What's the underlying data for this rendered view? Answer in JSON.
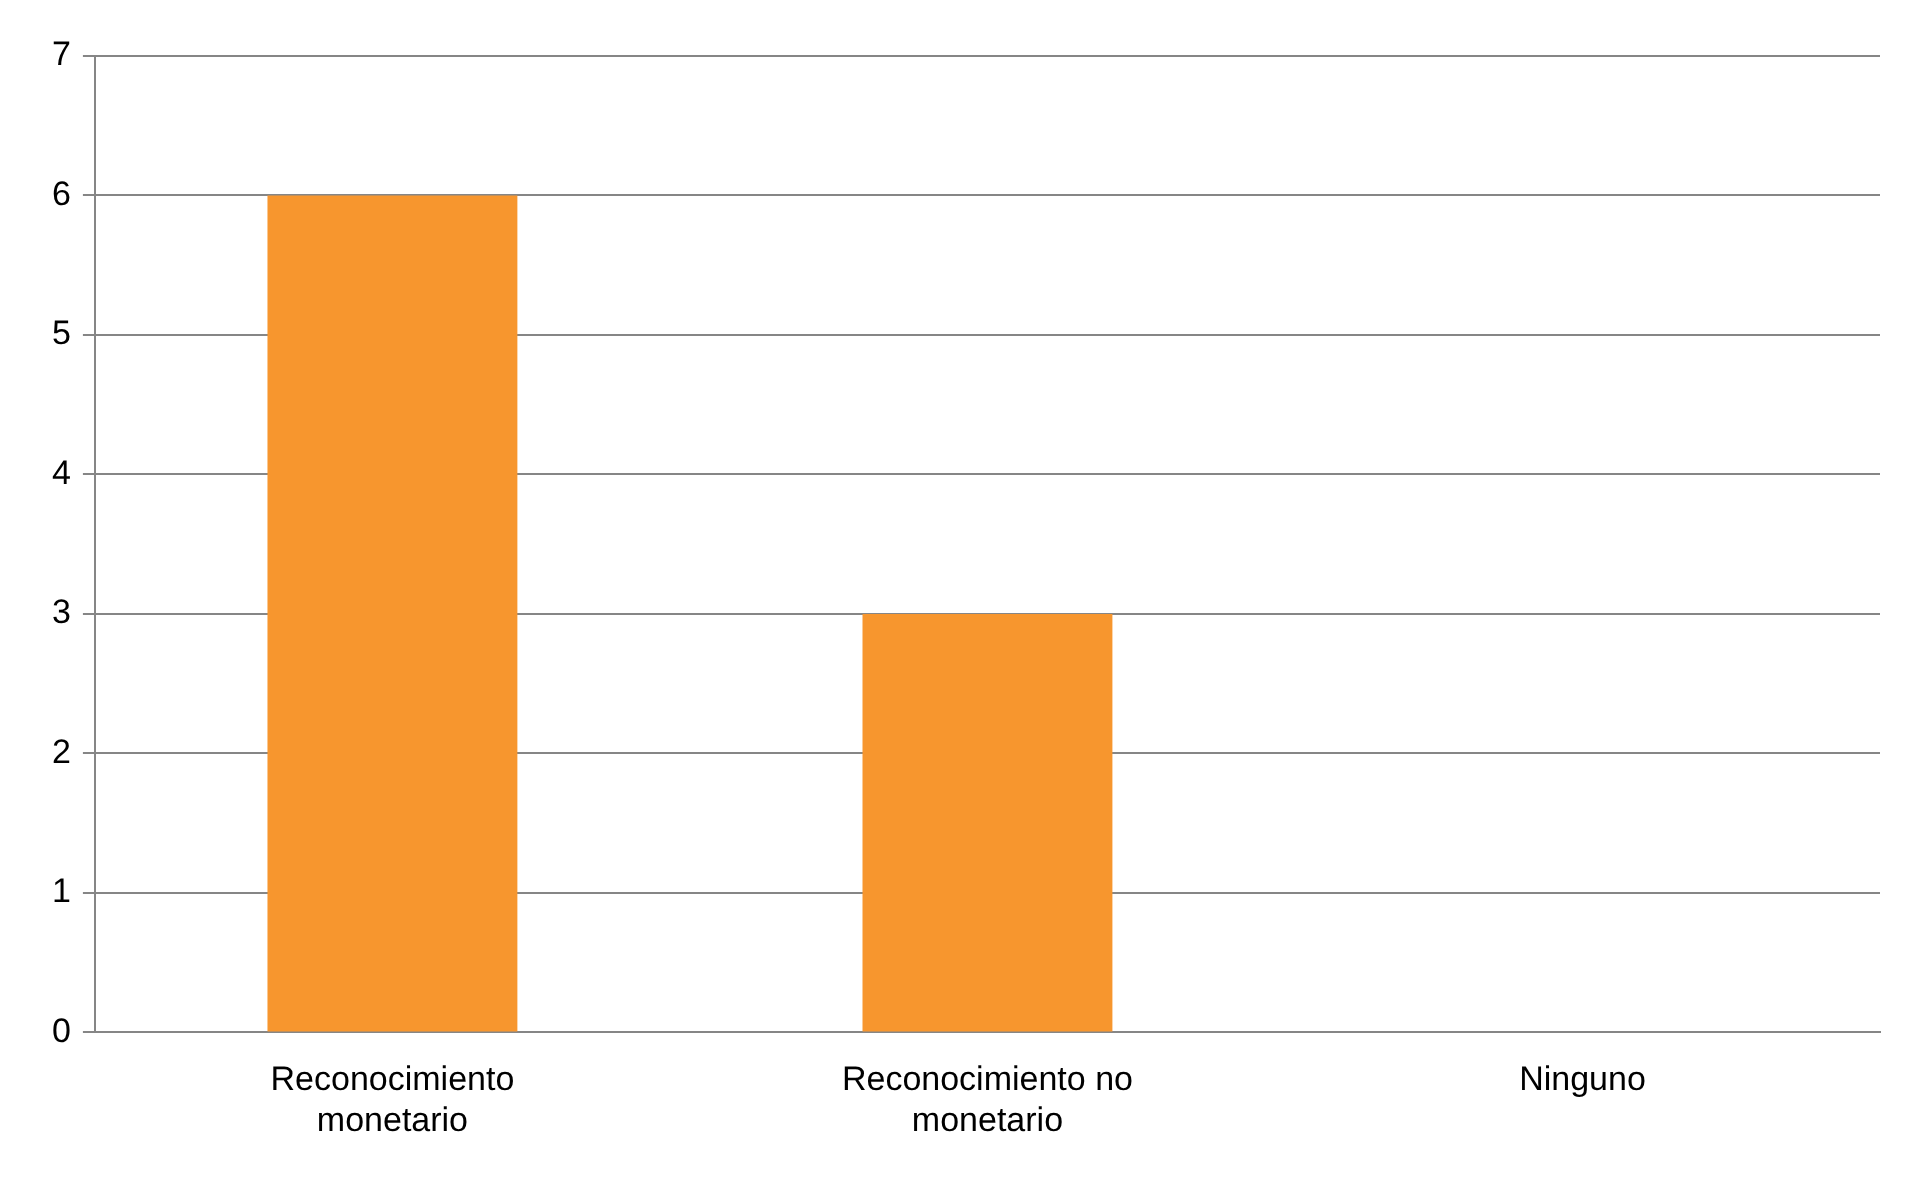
{
  "chart_data": {
    "type": "bar",
    "categories": [
      "Reconocimiento monetario",
      "Reconocimiento no monetario",
      "Ninguno"
    ],
    "values": [
      6,
      3,
      0
    ],
    "color": "#f7962e",
    "ylim": [
      0,
      7
    ],
    "yticks": [
      0,
      1,
      2,
      3,
      4,
      5,
      6,
      7
    ],
    "grid": "y",
    "legend": false
  }
}
